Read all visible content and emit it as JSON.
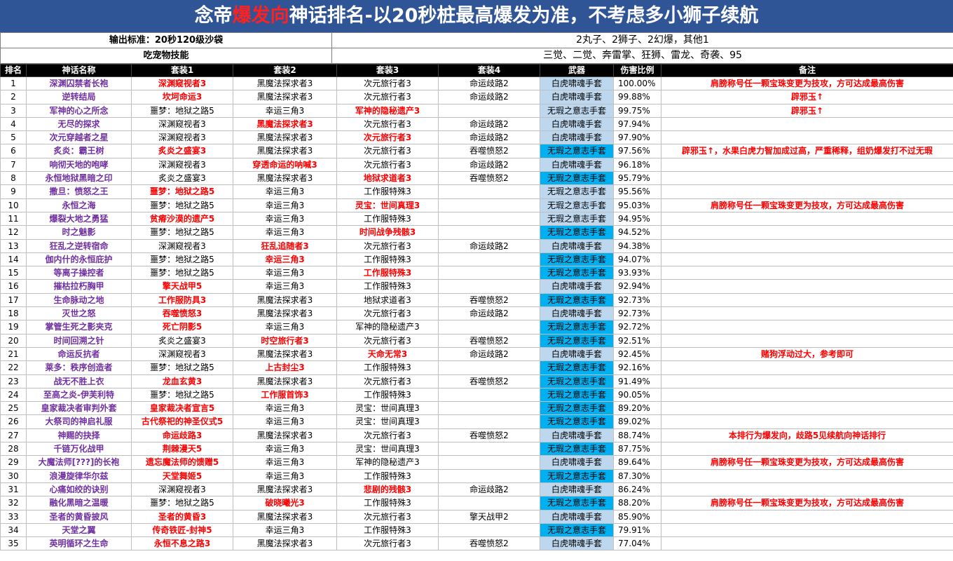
{
  "title": {
    "pre": "念帝",
    "highlight": "爆发向",
    "post": "神话排名-以20秒桩最高爆发为准，不考虑多小狮子续航"
  },
  "info": [
    {
      "label": "输出标准：20秒120级沙袋",
      "value": "2丸子、2狮子、2幻爆，其他1"
    },
    {
      "label": "吃宠物技能",
      "value": "三觉、二觉、奔雷掌、狂狮、雷龙、奇袭、95"
    }
  ],
  "headers": [
    "排名",
    "神话名称",
    "套装1",
    "套装2",
    "套装3",
    "套装4",
    "武器",
    "伤害比例",
    "备注"
  ],
  "rows": [
    {
      "rank": "1",
      "name": "深渊囚禁者长袍",
      "s1": "深渊窥视者3",
      "s1r": true,
      "s2": "黑魔法探求者3",
      "s2r": false,
      "s3": "次元旅行者3",
      "s3r": false,
      "s4": "命运歧路2",
      "weapon": "白虎啸魂手套",
      "wtype": "b",
      "pct": "100.00%",
      "note": "肩膀称号任一颗宝珠变更为技攻，方可达成最高伤害"
    },
    {
      "rank": "2",
      "name": "逆转结局",
      "s1": "坎坷命运3",
      "s1r": true,
      "s2": "黑魔法探求者3",
      "s2r": false,
      "s3": "次元旅行者3",
      "s3r": false,
      "s4": "命运歧路2",
      "weapon": "白虎啸魂手套",
      "wtype": "b",
      "pct": "99.88%",
      "note": "辟邪玉↑"
    },
    {
      "rank": "3",
      "name": "军神的心之所念",
      "s1": "噩梦：地狱之路5",
      "s1r": false,
      "s2": "幸运三角3",
      "s2r": false,
      "s3": "军神的隐秘遗产3",
      "s3r": true,
      "s4": "",
      "weapon": "无瑕之意志手套",
      "wtype": "b",
      "pct": "99.75%",
      "note": "辟邪玉↑"
    },
    {
      "rank": "4",
      "name": "无尽的探求",
      "s1": "深渊窥视者3",
      "s1r": false,
      "s2": "黑魔法探求者3",
      "s2r": true,
      "s3": "次元旅行者3",
      "s3r": false,
      "s4": "命运歧路2",
      "weapon": "白虎啸魂手套",
      "wtype": "b",
      "pct": "97.94%",
      "note": ""
    },
    {
      "rank": "5",
      "name": "次元穿越者之星",
      "s1": "深渊窥视者3",
      "s1r": false,
      "s2": "黑魔法探求者3",
      "s2r": false,
      "s3": "次元旅行者3",
      "s3r": true,
      "s4": "命运歧路2",
      "weapon": "白虎啸魂手套",
      "wtype": "b",
      "pct": "97.90%",
      "note": ""
    },
    {
      "rank": "6",
      "name": "炙炎：霸王树",
      "s1": "炙炎之盛宴3",
      "s1r": true,
      "s2": "黑魔法探求者3",
      "s2r": false,
      "s3": "次元旅行者3",
      "s3r": false,
      "s4": "吞噬愤怒2",
      "weapon": "无瑕之意志手套",
      "wtype": "c",
      "pct": "97.56%",
      "note": "辟邪玉↑，水果白虎力智加成过高，严重稀释，组奶爆发打不过无瑕"
    },
    {
      "rank": "7",
      "name": "响彻天地的咆哮",
      "s1": "深渊窥视者3",
      "s1r": false,
      "s2": "穿透命运的呐喊3",
      "s2r": true,
      "s3": "次元旅行者3",
      "s3r": false,
      "s4": "命运歧路2",
      "weapon": "白虎啸魂手套",
      "wtype": "b",
      "pct": "96.18%",
      "note": ""
    },
    {
      "rank": "8",
      "name": "永恒地狱黑暗之印",
      "s1": "炙炎之盛宴3",
      "s1r": false,
      "s2": "黑魔法探求者3",
      "s2r": false,
      "s3": "地狱求道者3",
      "s3r": true,
      "s4": "吞噬愤怒2",
      "weapon": "无瑕之意志手套",
      "wtype": "c",
      "pct": "95.79%",
      "note": ""
    },
    {
      "rank": "9",
      "name": "撒旦：愤怒之王",
      "s1": "噩梦：地狱之路5",
      "s1r": true,
      "s2": "幸运三角3",
      "s2r": false,
      "s3": "工作服特殊3",
      "s3r": false,
      "s4": "",
      "weapon": "无瑕之意志手套",
      "wtype": "b",
      "pct": "95.56%",
      "note": ""
    },
    {
      "rank": "10",
      "name": "永恒之海",
      "s1": "噩梦：地狱之路5",
      "s1r": false,
      "s2": "幸运三角3",
      "s2r": false,
      "s3": "灵宝：世间真理3",
      "s3r": true,
      "s4": "",
      "weapon": "无瑕之意志手套",
      "wtype": "b",
      "pct": "95.03%",
      "note": "肩膀称号任一颗宝珠变更为技攻，方可达成最高伤害"
    },
    {
      "rank": "11",
      "name": "爆裂大地之勇猛",
      "s1": "贫瘠沙漠的遗产5",
      "s1r": true,
      "s2": "幸运三角3",
      "s2r": false,
      "s3": "工作服特殊3",
      "s3r": false,
      "s4": "",
      "weapon": "无瑕之意志手套",
      "wtype": "b",
      "pct": "94.95%",
      "note": ""
    },
    {
      "rank": "12",
      "name": "时之魅影",
      "s1": "噩梦：地狱之路5",
      "s1r": false,
      "s2": "幸运三角3",
      "s2r": false,
      "s3": "时间战争残骸3",
      "s3r": true,
      "s4": "",
      "weapon": "无瑕之意志手套",
      "wtype": "c",
      "pct": "94.52%",
      "note": ""
    },
    {
      "rank": "13",
      "name": "狂乱之逆转宿命",
      "s1": "深渊窥视者3",
      "s1r": false,
      "s2": "狂乱追随者3",
      "s2r": true,
      "s3": "次元旅行者3",
      "s3r": false,
      "s4": "命运歧路2",
      "weapon": "白虎啸魂手套",
      "wtype": "b",
      "pct": "94.38%",
      "note": ""
    },
    {
      "rank": "14",
      "name": "伽内什的永恒庇护",
      "s1": "噩梦：地狱之路5",
      "s1r": false,
      "s2": "幸运三角3",
      "s2r": true,
      "s3": "工作服特殊3",
      "s3r": false,
      "s4": "",
      "weapon": "无瑕之意志手套",
      "wtype": "c",
      "pct": "94.07%",
      "note": ""
    },
    {
      "rank": "15",
      "name": "等离子操控者",
      "s1": "噩梦：地狱之路5",
      "s1r": false,
      "s2": "幸运三角3",
      "s2r": false,
      "s3": "工作服特殊3",
      "s3r": true,
      "s4": "",
      "weapon": "无瑕之意志手套",
      "wtype": "c",
      "pct": "93.93%",
      "note": ""
    },
    {
      "rank": "16",
      "name": "摧枯拉朽胸甲",
      "s1": "擎天战甲5",
      "s1r": true,
      "s2": "幸运三角3",
      "s2r": false,
      "s3": "工作服特殊3",
      "s3r": false,
      "s4": "",
      "weapon": "白虎啸魂手套",
      "wtype": "b",
      "pct": "92.94%",
      "note": ""
    },
    {
      "rank": "17",
      "name": "生命脉动之地",
      "s1": "工作服防具3",
      "s1r": true,
      "s2": "黑魔法探求者3",
      "s2r": false,
      "s3": "地狱求道者3",
      "s3r": false,
      "s4": "吞噬愤怒2",
      "weapon": "无瑕之意志手套",
      "wtype": "c",
      "pct": "92.73%",
      "note": ""
    },
    {
      "rank": "18",
      "name": "灭世之怒",
      "s1": "吞噬愤怒3",
      "s1r": true,
      "s2": "黑魔法探求者3",
      "s2r": false,
      "s3": "次元旅行者3",
      "s3r": false,
      "s4": "命运歧路2",
      "weapon": "白虎啸魂手套",
      "wtype": "b",
      "pct": "92.73%",
      "note": ""
    },
    {
      "rank": "19",
      "name": "掌管生死之影夹克",
      "s1": "死亡阴影5",
      "s1r": true,
      "s2": "幸运三角3",
      "s2r": false,
      "s3": "军神的隐秘遗产3",
      "s3r": false,
      "s4": "",
      "weapon": "无瑕之意志手套",
      "wtype": "c",
      "pct": "92.72%",
      "note": ""
    },
    {
      "rank": "20",
      "name": "时间回溯之针",
      "s1": "炙炎之盛宴3",
      "s1r": false,
      "s2": "时空旅行者3",
      "s2r": true,
      "s3": "次元旅行者3",
      "s3r": false,
      "s4": "吞噬愤怒2",
      "weapon": "无瑕之意志手套",
      "wtype": "c",
      "pct": "92.51%",
      "note": ""
    },
    {
      "rank": "21",
      "name": "命运反抗者",
      "s1": "深渊窥视者3",
      "s1r": false,
      "s2": "黑魔法探求者3",
      "s2r": false,
      "s3": "天命无常3",
      "s3r": true,
      "s4": "命运歧路2",
      "weapon": "白虎啸魂手套",
      "wtype": "b",
      "pct": "92.45%",
      "note": "赌狗浮动过大，参考即可"
    },
    {
      "rank": "22",
      "name": "莱多：秩序创造者",
      "s1": "噩梦：地狱之路5",
      "s1r": false,
      "s2": "上古封尘3",
      "s2r": true,
      "s3": "工作服特殊3",
      "s3r": false,
      "s4": "",
      "weapon": "无瑕之意志手套",
      "wtype": "c",
      "pct": "92.16%",
      "note": ""
    },
    {
      "rank": "23",
      "name": "战无不胜上衣",
      "s1": "龙血玄黄3",
      "s1r": true,
      "s2": "黑魔法探求者3",
      "s2r": false,
      "s3": "次元旅行者3",
      "s3r": false,
      "s4": "吞噬愤怒2",
      "weapon": "无瑕之意志手套",
      "wtype": "c",
      "pct": "91.49%",
      "note": ""
    },
    {
      "rank": "24",
      "name": "至高之炎-伊芙利特",
      "s1": "噩梦：地狱之路5",
      "s1r": false,
      "s2": "工作服首饰3",
      "s2r": true,
      "s3": "工作服特殊3",
      "s3r": false,
      "s4": "",
      "weapon": "无瑕之意志手套",
      "wtype": "c",
      "pct": "90.05%",
      "note": ""
    },
    {
      "rank": "25",
      "name": "皇家裁决者审判外套",
      "s1": "皇家裁决者宣言5",
      "s1r": true,
      "s2": "幸运三角3",
      "s2r": false,
      "s3": "灵宝：世间真理3",
      "s3r": false,
      "s4": "",
      "weapon": "无瑕之意志手套",
      "wtype": "c",
      "pct": "89.20%",
      "note": ""
    },
    {
      "rank": "26",
      "name": "大祭司的神启礼服",
      "s1": "古代祭祀的神圣仪式5",
      "s1r": true,
      "s2": "幸运三角3",
      "s2r": false,
      "s3": "灵宝：世间真理3",
      "s3r": false,
      "s4": "",
      "weapon": "无瑕之意志手套",
      "wtype": "c",
      "pct": "89.02%",
      "note": ""
    },
    {
      "rank": "27",
      "name": "神赐的抉择",
      "s1": "命运歧路3",
      "s1r": true,
      "s2": "黑魔法探求者3",
      "s2r": false,
      "s3": "次元旅行者3",
      "s3r": false,
      "s4": "吞噬愤怒2",
      "weapon": "白虎啸魂手套",
      "wtype": "b",
      "pct": "88.74%",
      "note": "本排行为爆发向，歧路5见续航向神话排行"
    },
    {
      "rank": "28",
      "name": "千链万化战甲",
      "s1": "荆棘漫天5",
      "s1r": true,
      "s2": "幸运三角3",
      "s2r": false,
      "s3": "灵宝：世间真理3",
      "s3r": false,
      "s4": "",
      "weapon": "无瑕之意志手套",
      "wtype": "c",
      "pct": "87.75%",
      "note": ""
    },
    {
      "rank": "29",
      "name": "大魔法师[???]的长袍",
      "s1": "遗忘魔法师的馈赠5",
      "s1r": true,
      "s2": "幸运三角3",
      "s2r": false,
      "s3": "军神的隐秘遗产3",
      "s3r": false,
      "s4": "",
      "weapon": "白虎啸魂手套",
      "wtype": "b",
      "pct": "89.64%",
      "note": "肩膀称号任一颗宝珠变更为技攻，方可达成最高伤害"
    },
    {
      "rank": "30",
      "name": "浪漫旋律华尔兹",
      "s1": "天堂舞姬5",
      "s1r": true,
      "s2": "幸运三角3",
      "s2r": false,
      "s3": "工作服特殊3",
      "s3r": false,
      "s4": "",
      "weapon": "无瑕之意志手套",
      "wtype": "c",
      "pct": "87.30%",
      "note": ""
    },
    {
      "rank": "31",
      "name": "心痛如绞的诀别",
      "s1": "深渊窥视者3",
      "s1r": false,
      "s2": "黑魔法探求者3",
      "s2r": false,
      "s3": "悲剧的残骸3",
      "s3r": true,
      "s4": "命运歧路2",
      "weapon": "白虎啸魂手套",
      "wtype": "b",
      "pct": "86.24%",
      "note": ""
    },
    {
      "rank": "32",
      "name": "融化黑暗之温暖",
      "s1": "噩梦：地狱之路5",
      "s1r": false,
      "s2": "破晓曦光3",
      "s2r": true,
      "s3": "工作服特殊3",
      "s3r": false,
      "s4": "",
      "weapon": "无瑕之意志手套",
      "wtype": "c",
      "pct": "88.20%",
      "note": "肩膀称号任一颗宝珠变更为技攻，方可达成最高伤害"
    },
    {
      "rank": "33",
      "name": "圣者的黄昏披风",
      "s1": "圣者的黄昏3",
      "s1r": true,
      "s2": "黑魔法探求者3",
      "s2r": false,
      "s3": "次元旅行者3",
      "s3r": false,
      "s4": "擎天战甲2",
      "weapon": "白虎啸魂手套",
      "wtype": "b",
      "pct": "85.90%",
      "note": ""
    },
    {
      "rank": "34",
      "name": "天堂之翼",
      "s1": "传奇铁匠-封神5",
      "s1r": true,
      "s2": "幸运三角3",
      "s2r": false,
      "s3": "工作服特殊3",
      "s3r": false,
      "s4": "",
      "weapon": "无瑕之意志手套",
      "wtype": "c",
      "pct": "79.91%",
      "note": ""
    },
    {
      "rank": "35",
      "name": "英明循环之生命",
      "s1": "永恒不息之路3",
      "s1r": true,
      "s2": "黑魔法探求者3",
      "s2r": false,
      "s3": "次元旅行者3",
      "s3r": false,
      "s4": "吞噬愤怒2",
      "weapon": "白虎啸魂手套",
      "wtype": "b",
      "pct": "77.04%",
      "note": ""
    }
  ],
  "colors": {
    "title_bg": "#2f5597",
    "highlight": "#ff2020",
    "name": "#7030a0",
    "red": "#ff0000",
    "weapon_light": "#bdd7ee",
    "weapon_cyan": "#00b0f0"
  }
}
